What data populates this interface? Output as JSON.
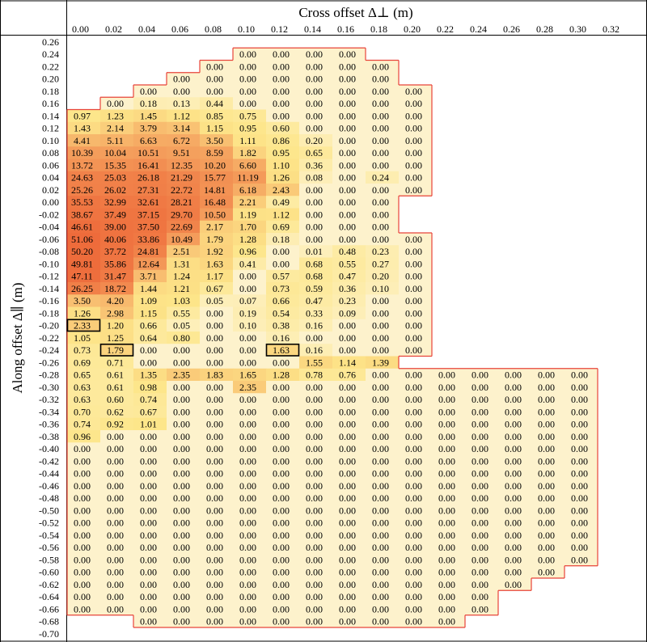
{
  "chart_data": {
    "type": "heatmap",
    "title": "",
    "xlabel": "Cross offset Δ⊥ (m)",
    "ylabel": "Along offset Δ∥ (m)",
    "x_ticks": [
      "0.00",
      "0.02",
      "0.04",
      "0.06",
      "0.08",
      "0.10",
      "0.12",
      "0.14",
      "0.16",
      "0.18",
      "0.20",
      "0.22",
      "0.24",
      "0.26",
      "0.28",
      "0.30",
      "0.32"
    ],
    "y_ticks": [
      "0.26",
      "0.24",
      "0.22",
      "0.20",
      "0.18",
      "0.16",
      "0.14",
      "0.12",
      "0.10",
      "0.08",
      "0.06",
      "0.04",
      "0.02",
      "0.00",
      "-0.02",
      "-0.04",
      "-0.06",
      "-0.08",
      "-0.10",
      "-0.12",
      "-0.14",
      "-0.16",
      "-0.18",
      "-0.20",
      "-0.22",
      "-0.24",
      "-0.26",
      "-0.28",
      "-0.30",
      "-0.32",
      "-0.34",
      "-0.36",
      "-0.38",
      "-0.40",
      "-0.42",
      "-0.44",
      "-0.46",
      "-0.48",
      "-0.50",
      "-0.52",
      "-0.54",
      "-0.56",
      "-0.58",
      "-0.60",
      "-0.62",
      "-0.64",
      "-0.66",
      "-0.68",
      "-0.70"
    ],
    "color_scale": {
      "low": "#fdf2cc",
      "mid": "#fde68a",
      "high": "#ee6b3b",
      "max_value": 51.06
    },
    "boundary_color": "#e8443a",
    "rows": [
      [
        null,
        null,
        null,
        null,
        null,
        null,
        null,
        null,
        null,
        null,
        null,
        null,
        null,
        null,
        null,
        null,
        null
      ],
      [
        null,
        null,
        null,
        null,
        null,
        "0.00",
        "0.00",
        "0.00",
        "0.00",
        null,
        null,
        null,
        null,
        null,
        null,
        null,
        null
      ],
      [
        null,
        null,
        null,
        null,
        "0.00",
        "0.00",
        "0.00",
        "0.00",
        "0.00",
        "0.00",
        null,
        null,
        null,
        null,
        null,
        null,
        null
      ],
      [
        null,
        null,
        null,
        "0.00",
        "0.00",
        "0.00",
        "0.00",
        "0.00",
        "0.00",
        "0.00",
        null,
        null,
        null,
        null,
        null,
        null,
        null
      ],
      [
        null,
        null,
        "0.00",
        "0.00",
        "0.00",
        "0.00",
        "0.00",
        "0.00",
        "0.00",
        "0.00",
        "0.00",
        null,
        null,
        null,
        null,
        null,
        null
      ],
      [
        null,
        "0.00",
        "0.18",
        "0.13",
        "0.44",
        "0.00",
        "0.00",
        "0.00",
        "0.00",
        "0.00",
        "0.00",
        null,
        null,
        null,
        null,
        null,
        null
      ],
      [
        "0.97",
        "1.23",
        "1.45",
        "1.12",
        "0.85",
        "0.75",
        "0.00",
        "0.00",
        "0.00",
        "0.00",
        "0.00",
        null,
        null,
        null,
        null,
        null,
        null
      ],
      [
        "1.43",
        "2.14",
        "3.79",
        "3.14",
        "1.15",
        "0.95",
        "0.60",
        "0.00",
        "0.00",
        "0.00",
        "0.00",
        null,
        null,
        null,
        null,
        null,
        null
      ],
      [
        "4.41",
        "5.11",
        "6.63",
        "6.72",
        "3.50",
        "1.11",
        "0.86",
        "0.20",
        "0.00",
        "0.00",
        "0.00",
        null,
        null,
        null,
        null,
        null,
        null
      ],
      [
        "10.39",
        "10.04",
        "10.51",
        "9.51",
        "8.59",
        "1.82",
        "0.95",
        "0.65",
        "0.00",
        "0.00",
        "0.00",
        null,
        null,
        null,
        null,
        null,
        null
      ],
      [
        "13.72",
        "15.35",
        "16.41",
        "12.35",
        "10.20",
        "6.60",
        "1.10",
        "0.36",
        "0.00",
        "0.00",
        "0.00",
        null,
        null,
        null,
        null,
        null,
        null
      ],
      [
        "24.63",
        "25.03",
        "26.18",
        "21.29",
        "15.77",
        "11.19",
        "1.26",
        "0.08",
        "0.00",
        "0.24",
        "0.00",
        null,
        null,
        null,
        null,
        null,
        null
      ],
      [
        "25.26",
        "26.02",
        "27.31",
        "22.72",
        "14.81",
        "6.18",
        "2.43",
        "0.00",
        "0.00",
        "0.00",
        "0.00",
        null,
        null,
        null,
        null,
        null,
        null
      ],
      [
        "35.53",
        "32.99",
        "32.61",
        "28.21",
        "16.48",
        "2.21",
        "0.49",
        "0.00",
        "0.00",
        "0.00",
        null,
        null,
        null,
        null,
        null,
        null,
        null
      ],
      [
        "38.67",
        "37.49",
        "37.15",
        "29.70",
        "10.50",
        "1.19",
        "1.12",
        "0.00",
        "0.00",
        "0.00",
        null,
        null,
        null,
        null,
        null,
        null,
        null
      ],
      [
        "46.61",
        "39.00",
        "37.50",
        "22.69",
        "2.17",
        "1.70",
        "0.69",
        "0.00",
        "0.00",
        "0.00",
        null,
        null,
        null,
        null,
        null,
        null,
        null
      ],
      [
        "51.06",
        "40.06",
        "33.86",
        "10.49",
        "1.79",
        "1.28",
        "0.18",
        "0.00",
        "0.00",
        "0.00",
        "0.00",
        null,
        null,
        null,
        null,
        null,
        null
      ],
      [
        "50.20",
        "37.72",
        "24.81",
        "2.51",
        "1.92",
        "0.96",
        "0.00",
        "0.01",
        "0.48",
        "0.23",
        "0.00",
        null,
        null,
        null,
        null,
        null,
        null
      ],
      [
        "49.81",
        "35.86",
        "12.64",
        "1.31",
        "1.63",
        "0.41",
        "0.00",
        "0.68",
        "0.55",
        "0.27",
        "0.00",
        null,
        null,
        null,
        null,
        null,
        null
      ],
      [
        "47.11",
        "31.47",
        "3.71",
        "1.24",
        "1.17",
        "0.00",
        "0.57",
        "0.68",
        "0.47",
        "0.20",
        "0.00",
        null,
        null,
        null,
        null,
        null,
        null
      ],
      [
        "26.25",
        "18.72",
        "1.44",
        "1.21",
        "0.67",
        "0.00",
        "0.73",
        "0.59",
        "0.36",
        "0.10",
        "0.00",
        null,
        null,
        null,
        null,
        null,
        null
      ],
      [
        "3.50",
        "4.20",
        "1.09",
        "1.03",
        "0.05",
        "0.07",
        "0.66",
        "0.47",
        "0.23",
        "0.00",
        "0.00",
        null,
        null,
        null,
        null,
        null,
        null
      ],
      [
        "1.26",
        "2.98",
        "1.15",
        "0.55",
        "0.00",
        "0.19",
        "0.54",
        "0.33",
        "0.09",
        "0.00",
        "0.00",
        null,
        null,
        null,
        null,
        null,
        null
      ],
      [
        "2.33",
        "1.20",
        "0.66",
        "0.05",
        "0.00",
        "0.10",
        "0.38",
        "0.16",
        "0.00",
        "0.00",
        "0.00",
        null,
        null,
        null,
        null,
        null,
        null
      ],
      [
        "1.05",
        "1.25",
        "0.64",
        "0.80",
        "0.00",
        "0.00",
        "0.16",
        "0.00",
        "0.00",
        "0.00",
        "0.00",
        null,
        null,
        null,
        null,
        null,
        null
      ],
      [
        "0.73",
        "1.79",
        "0.00",
        "0.00",
        "0.00",
        "0.00",
        "1.63",
        "0.16",
        "0.00",
        "0.00",
        "0.00",
        null,
        null,
        null,
        null,
        null,
        null
      ],
      [
        "0.69",
        "0.71",
        "0.00",
        "0.00",
        "0.00",
        "0.00",
        "0.00",
        "1.55",
        "1.14",
        "1.39",
        null,
        null,
        null,
        null,
        null,
        null,
        null
      ],
      [
        "0.65",
        "0.61",
        "1.35",
        "2.35",
        "1.83",
        "1.65",
        "1.28",
        "0.78",
        "0.76",
        "0.00",
        "0.00",
        "0.00",
        "0.00",
        "0.00",
        "0.00",
        "0.00",
        null
      ],
      [
        "0.63",
        "0.61",
        "0.98",
        "0.00",
        "0.00",
        "2.35",
        "0.00",
        "0.00",
        "0.00",
        "0.00",
        "0.00",
        "0.00",
        "0.00",
        "0.00",
        "0.00",
        "0.00",
        null
      ],
      [
        "0.63",
        "0.60",
        "0.74",
        "0.00",
        "0.00",
        "0.00",
        "0.00",
        "0.00",
        "0.00",
        "0.00",
        "0.00",
        "0.00",
        "0.00",
        "0.00",
        "0.00",
        "0.00",
        null
      ],
      [
        "0.70",
        "0.62",
        "0.67",
        "0.00",
        "0.00",
        "0.00",
        "0.00",
        "0.00",
        "0.00",
        "0.00",
        "0.00",
        "0.00",
        "0.00",
        "0.00",
        "0.00",
        "0.00",
        null
      ],
      [
        "0.74",
        "0.92",
        "1.01",
        "0.00",
        "0.00",
        "0.00",
        "0.00",
        "0.00",
        "0.00",
        "0.00",
        "0.00",
        "0.00",
        "0.00",
        "0.00",
        "0.00",
        "0.00",
        null
      ],
      [
        "0.96",
        "0.00",
        "0.00",
        "0.00",
        "0.00",
        "0.00",
        "0.00",
        "0.00",
        "0.00",
        "0.00",
        "0.00",
        "0.00",
        "0.00",
        "0.00",
        "0.00",
        "0.00",
        null
      ],
      [
        "0.00",
        "0.00",
        "0.00",
        "0.00",
        "0.00",
        "0.00",
        "0.00",
        "0.00",
        "0.00",
        "0.00",
        "0.00",
        "0.00",
        "0.00",
        "0.00",
        "0.00",
        "0.00",
        null
      ],
      [
        "0.00",
        "0.00",
        "0.00",
        "0.00",
        "0.00",
        "0.00",
        "0.00",
        "0.00",
        "0.00",
        "0.00",
        "0.00",
        "0.00",
        "0.00",
        "0.00",
        "0.00",
        "0.00",
        null
      ],
      [
        "0.00",
        "0.00",
        "0.00",
        "0.00",
        "0.00",
        "0.00",
        "0.00",
        "0.00",
        "0.00",
        "0.00",
        "0.00",
        "0.00",
        "0.00",
        "0.00",
        "0.00",
        "0.00",
        null
      ],
      [
        "0.00",
        "0.00",
        "0.00",
        "0.00",
        "0.00",
        "0.00",
        "0.00",
        "0.00",
        "0.00",
        "0.00",
        "0.00",
        "0.00",
        "0.00",
        "0.00",
        "0.00",
        "0.00",
        null
      ],
      [
        "0.00",
        "0.00",
        "0.00",
        "0.00",
        "0.00",
        "0.00",
        "0.00",
        "0.00",
        "0.00",
        "0.00",
        "0.00",
        "0.00",
        "0.00",
        "0.00",
        "0.00",
        "0.00",
        null
      ],
      [
        "0.00",
        "0.00",
        "0.00",
        "0.00",
        "0.00",
        "0.00",
        "0.00",
        "0.00",
        "0.00",
        "0.00",
        "0.00",
        "0.00",
        "0.00",
        "0.00",
        "0.00",
        "0.00",
        null
      ],
      [
        "0.00",
        "0.00",
        "0.00",
        "0.00",
        "0.00",
        "0.00",
        "0.00",
        "0.00",
        "0.00",
        "0.00",
        "0.00",
        "0.00",
        "0.00",
        "0.00",
        "0.00",
        "0.00",
        null
      ],
      [
        "0.00",
        "0.00",
        "0.00",
        "0.00",
        "0.00",
        "0.00",
        "0.00",
        "0.00",
        "0.00",
        "0.00",
        "0.00",
        "0.00",
        "0.00",
        "0.00",
        "0.00",
        "0.00",
        null
      ],
      [
        "0.00",
        "0.00",
        "0.00",
        "0.00",
        "0.00",
        "0.00",
        "0.00",
        "0.00",
        "0.00",
        "0.00",
        "0.00",
        "0.00",
        "0.00",
        "0.00",
        "0.00",
        "0.00",
        null
      ],
      [
        "0.00",
        "0.00",
        "0.00",
        "0.00",
        "0.00",
        "0.00",
        "0.00",
        "0.00",
        "0.00",
        "0.00",
        "0.00",
        "0.00",
        "0.00",
        "0.00",
        "0.00",
        "0.00",
        null
      ],
      [
        "0.00",
        "0.00",
        "0.00",
        "0.00",
        "0.00",
        "0.00",
        "0.00",
        "0.00",
        "0.00",
        "0.00",
        "0.00",
        "0.00",
        "0.00",
        "0.00",
        "0.00",
        null,
        null
      ],
      [
        "0.00",
        "0.00",
        "0.00",
        "0.00",
        "0.00",
        "0.00",
        "0.00",
        "0.00",
        "0.00",
        "0.00",
        "0.00",
        "0.00",
        "0.00",
        "0.00",
        null,
        null,
        null
      ],
      [
        "0.00",
        "0.00",
        "0.00",
        "0.00",
        "0.00",
        "0.00",
        "0.00",
        "0.00",
        "0.00",
        "0.00",
        "0.00",
        "0.00",
        "0.00",
        null,
        null,
        null,
        null
      ],
      [
        "0.00",
        "0.00",
        "0.00",
        "0.00",
        "0.00",
        "0.00",
        "0.00",
        "0.00",
        "0.00",
        "0.00",
        "0.00",
        "0.00",
        "0.00",
        null,
        null,
        null,
        null
      ],
      [
        null,
        null,
        "0.00",
        "0.00",
        "0.00",
        "0.00",
        "0.00",
        "0.00",
        "0.00",
        "0.00",
        "0.00",
        "0.00",
        null,
        null,
        null,
        null,
        null
      ],
      [
        null,
        null,
        null,
        null,
        null,
        null,
        null,
        null,
        null,
        null,
        null,
        null,
        null,
        null,
        null,
        null,
        null
      ]
    ],
    "highlighted_cells": [
      {
        "along": "-0.20",
        "cross": "0.00"
      },
      {
        "along": "-0.24",
        "cross": "0.02"
      },
      {
        "along": "-0.24",
        "cross": "0.12"
      }
    ],
    "grid": false,
    "legend": "none"
  }
}
